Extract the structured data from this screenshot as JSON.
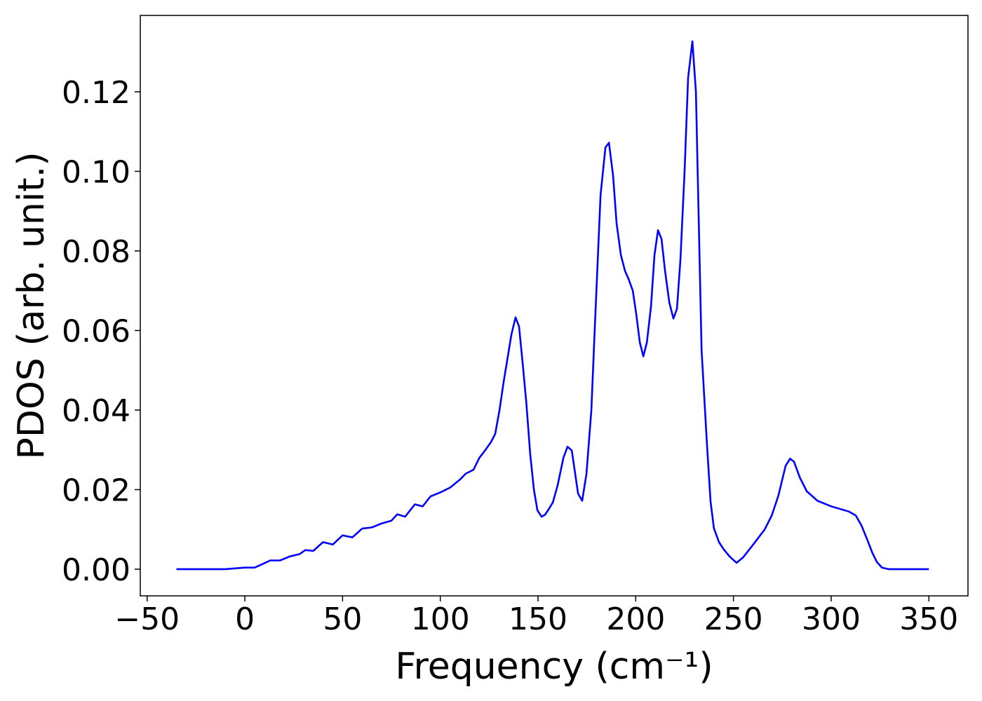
{
  "chart_data": {
    "type": "line",
    "xlabel": "Frequency (cm⁻¹)",
    "ylabel": "PDOS (arb. unit.)",
    "xlim": [
      -53.5,
      370
    ],
    "ylim": [
      -0.0067,
      0.1392
    ],
    "xticks": [
      {
        "value": -50,
        "label": "−50"
      },
      0,
      50,
      100,
      150,
      200,
      250,
      300,
      350
    ],
    "yticks": [
      {
        "value": 0,
        "label": "0.00"
      },
      {
        "value": 0.02,
        "label": "0.02"
      },
      {
        "value": 0.04,
        "label": "0.04"
      },
      {
        "value": 0.06,
        "label": "0.06"
      },
      {
        "value": 0.08,
        "label": "0.08"
      },
      {
        "value": 0.1,
        "label": "0.10"
      },
      {
        "value": 0.12,
        "label": "0.12"
      }
    ],
    "series": [
      {
        "color": "#0000ff",
        "x": [
          -35,
          -10,
          0,
          5,
          10,
          13,
          18,
          23,
          28,
          31,
          35,
          40,
          45,
          50,
          55,
          60,
          65,
          70,
          75,
          78,
          82,
          87,
          91,
          95,
          100,
          105,
          110,
          113,
          117,
          120,
          122.4,
          126,
          128.1,
          130.3,
          132.4,
          136.4,
          138.5,
          140.3,
          142.1,
          144,
          146,
          147.9,
          149.7,
          151.8,
          153.6,
          155.4,
          157.6,
          160,
          163,
          165.1,
          167.3,
          170.5,
          172.6,
          174.8,
          177.3,
          179,
          182,
          184.5,
          186.3,
          188.4,
          190.2,
          192.4,
          194.5,
          196.3,
          198.5,
          200.3,
          202.1,
          203.9,
          205.7,
          207.8,
          209.6,
          211.4,
          213.2,
          215,
          217.2,
          219.3,
          221.1,
          222.9,
          225,
          226.8,
          229,
          230.8,
          233.7,
          236.5,
          238.3,
          240,
          242.6,
          245,
          248,
          251.6,
          255,
          260.6,
          266,
          269.6,
          273,
          276.7,
          279,
          281,
          284,
          287.5,
          293,
          300,
          309,
          312.6,
          315.5,
          318.4,
          321,
          323.4,
          326,
          329.5,
          350
        ],
        "values": [
          0,
          0,
          0.0004,
          0.0004,
          0.0015,
          0.0022,
          0.0022,
          0.0032,
          0.0038,
          0.0048,
          0.0046,
          0.0068,
          0.0062,
          0.0085,
          0.008,
          0.0102,
          0.0105,
          0.0115,
          0.0122,
          0.0138,
          0.0132,
          0.0163,
          0.0158,
          0.0183,
          0.0193,
          0.0205,
          0.0225,
          0.024,
          0.025,
          0.028,
          0.0295,
          0.032,
          0.034,
          0.04,
          0.047,
          0.059,
          0.0633,
          0.061,
          0.052,
          0.042,
          0.029,
          0.02,
          0.0148,
          0.0132,
          0.0137,
          0.015,
          0.0168,
          0.021,
          0.028,
          0.0308,
          0.0298,
          0.019,
          0.0172,
          0.024,
          0.04,
          0.06,
          0.094,
          0.106,
          0.1072,
          0.099,
          0.087,
          0.079,
          0.075,
          0.073,
          0.07,
          0.064,
          0.057,
          0.0535,
          0.057,
          0.066,
          0.079,
          0.0852,
          0.083,
          0.075,
          0.067,
          0.063,
          0.0655,
          0.078,
          0.1,
          0.1235,
          0.1327,
          0.12,
          0.055,
          0.031,
          0.017,
          0.0103,
          0.0068,
          0.005,
          0.0032,
          0.0016,
          0.003,
          0.0065,
          0.01,
          0.0135,
          0.0185,
          0.026,
          0.0278,
          0.027,
          0.023,
          0.0196,
          0.0172,
          0.0158,
          0.0145,
          0.0135,
          0.011,
          0.0075,
          0.0042,
          0.0018,
          0.0004,
          0,
          0
        ]
      }
    ]
  }
}
